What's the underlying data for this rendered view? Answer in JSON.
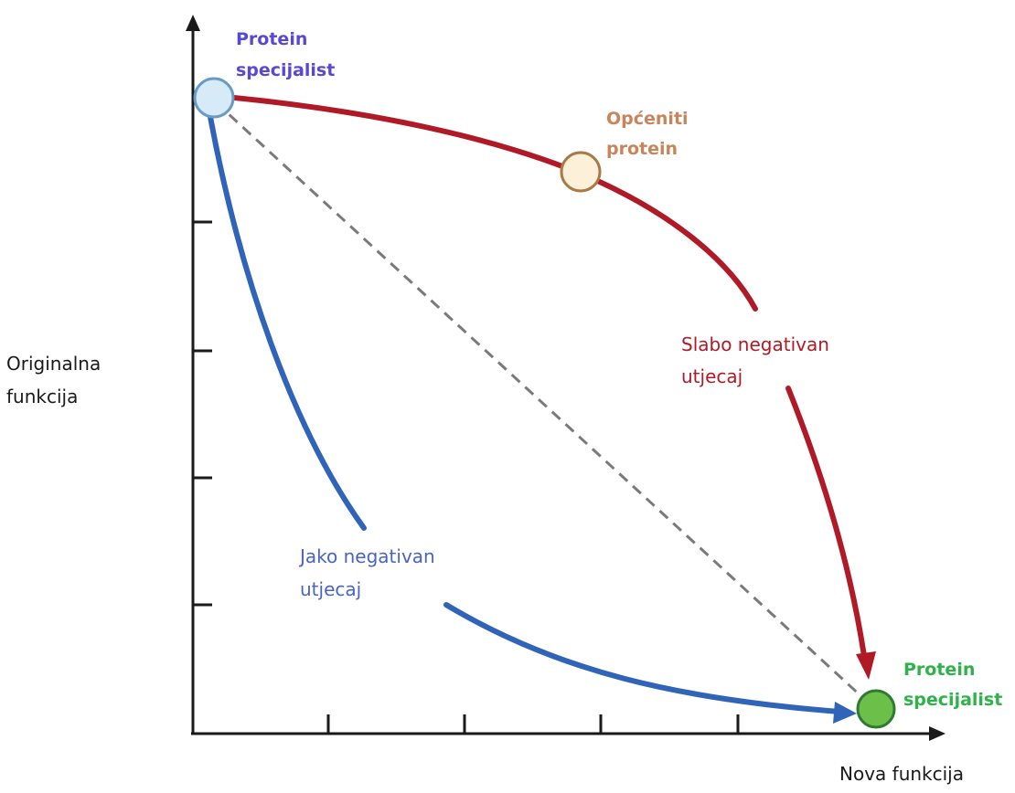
{
  "axes": {
    "y_label": [
      "Originalna",
      "funkcija"
    ],
    "x_label": "Nova funkcija"
  },
  "points": {
    "start": {
      "label": [
        "Protein",
        "specijalist"
      ],
      "color": "#5848d6",
      "fill": "#d6eaf8",
      "stroke": "#6a9bc5"
    },
    "middle": {
      "label": [
        "Općeniti",
        "protein"
      ],
      "color": "#c8845a",
      "fill": "#fdf0d8",
      "stroke": "#a77a48"
    },
    "end": {
      "label": [
        "Protein",
        "specijalist"
      ],
      "color": "#2eb24a",
      "fill": "#6cc04a",
      "stroke": "#2f7a30"
    }
  },
  "paths": {
    "weak": {
      "label": [
        "Slabo negativan",
        "utjecaj"
      ],
      "color": "#b01a27"
    },
    "strong": {
      "label": [
        "Jako negativan",
        "utjecaj"
      ],
      "color": "#2f64b8",
      "label_color": "#4a63c6"
    },
    "neutral": {
      "color": "#7a7a7a"
    }
  }
}
